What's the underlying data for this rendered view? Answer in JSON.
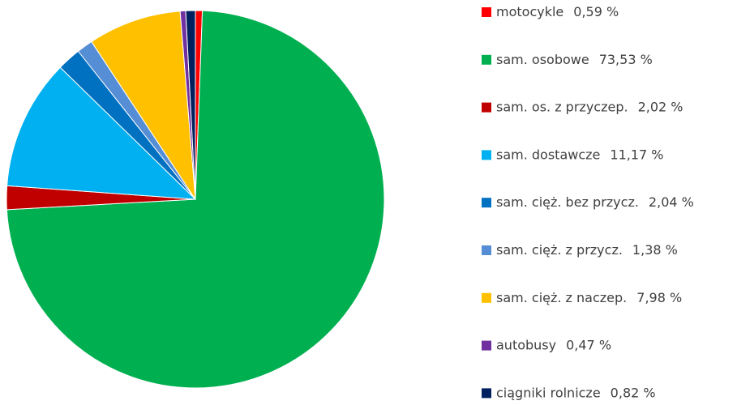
{
  "chart_data": {
    "type": "pie",
    "categories": [
      "motocykle",
      "sam. osobowe",
      "sam. os. z przyczep.",
      "sam. dostawcze",
      "sam. cięż. bez przycz.",
      "sam. cięż. z przycz.",
      "sam. cięż. z naczep.",
      "autobusy",
      "ciągniki rolnicze"
    ],
    "values": [
      0.59,
      73.53,
      2.02,
      11.17,
      2.04,
      1.38,
      7.98,
      0.47,
      0.82
    ],
    "value_labels": [
      "0,59 %",
      "73,53 %",
      "2,02 %",
      "11,17 %",
      "2,04 %",
      "1,38 %",
      "7,98 %",
      "0,47 %",
      "0,82 %"
    ],
    "colors": [
      "#ff0000",
      "#00b050",
      "#c00000",
      "#00b0f0",
      "#0070c0",
      "#558ed5",
      "#ffc000",
      "#7030a0",
      "#002060"
    ]
  }
}
